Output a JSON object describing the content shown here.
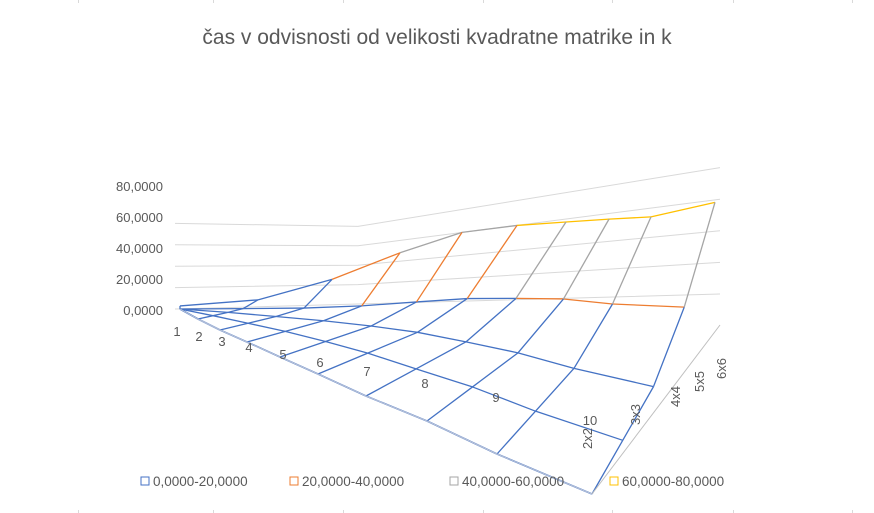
{
  "chart_data": {
    "type": "surface-3d",
    "title": "čas v odvisnosti od velikosti kvadratne matrike in k",
    "x": [
      "1",
      "2",
      "3",
      "4",
      "5",
      "6",
      "7",
      "8",
      "9",
      "10"
    ],
    "depth": [
      "2x2",
      "3x3",
      "4x4",
      "5x5",
      "6x6"
    ],
    "zlim": [
      0,
      80
    ],
    "z_ticks": [
      "0,0000",
      "20,0000",
      "40,0000",
      "60,0000",
      "80,0000"
    ],
    "grid": true,
    "legend_position": "bottom",
    "legend": [
      {
        "label": "0,0000-20,0000",
        "color": "#4472c4"
      },
      {
        "label": "20,0000-40,0000",
        "color": "#ed7d31"
      },
      {
        "label": "40,0000-60,0000",
        "color": "#a5a5a5"
      },
      {
        "label": "60,0000-80,0000",
        "color": "#ffc000"
      }
    ],
    "z_values": [
      [
        0.0,
        0.0,
        0.0,
        0.0,
        0.0
      ],
      [
        0.0,
        0.0,
        0.0,
        0.0,
        0.0
      ],
      [
        0.0,
        0.0,
        0.0,
        0.0,
        0.0
      ],
      [
        0.0,
        0.0,
        0.0,
        0.0,
        0.0
      ],
      [
        0.0,
        0.0,
        0.0,
        0.0,
        0.0
      ],
      [
        0.0,
        0.0,
        0.0,
        0.0,
        0.0
      ],
      [
        0.0,
        0.0,
        0.0,
        0.0,
        0.0
      ],
      [
        0.0,
        0.0,
        0.0,
        0.0,
        0.0
      ],
      [
        0.0,
        0.0,
        0.0,
        0.0,
        0.0
      ],
      [
        0.0,
        0.0,
        0.0,
        0.0,
        0.0
      ]
    ],
    "top_depth_values": [
      2.5,
      5.0,
      20.0,
      40.0,
      55.0,
      59.0,
      61.0,
      62.5,
      63.5,
      74.5
    ],
    "mid_depth_values": [
      0.0,
      0.5,
      2.0,
      5.0,
      10.0,
      15.0,
      19.0,
      23.0,
      25.0,
      30.0
    ]
  }
}
